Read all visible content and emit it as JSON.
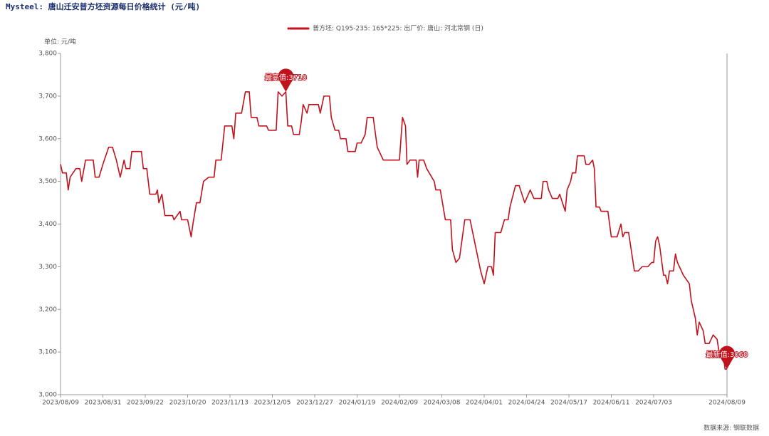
{
  "chart_data": {
    "type": "line",
    "title": "Mysteel: 唐山迁安普方坯资源每日价格统计 (元/吨)",
    "unit_label": "单位: 元/吨",
    "source": "数据来源: 钢联数据",
    "max_label": "最高值:3710",
    "latest_label": "最新值:3060",
    "x": [
      "2023/08/09",
      "2023/08/10",
      "2023/08/12",
      "2023/08/13",
      "2023/08/14",
      "2023/08/17",
      "2023/08/19",
      "2023/08/20",
      "2023/08/22",
      "2023/08/26",
      "2023/08/27",
      "2023/08/29",
      "2023/08/31",
      "2023/09/03",
      "2023/09/05",
      "2023/09/07",
      "2023/09/09",
      "2023/09/11",
      "2023/09/12",
      "2023/09/14",
      "2023/09/15",
      "2023/09/20",
      "2023/09/21",
      "2023/09/23",
      "2023/09/25",
      "2023/09/29",
      "2023/09/30",
      "2023/10/01",
      "2023/10/03",
      "2023/10/05",
      "2023/10/10",
      "2023/10/11",
      "2023/10/15",
      "2023/10/16",
      "2023/10/20",
      "2023/10/22",
      "2023/10/23",
      "2023/10/25",
      "2023/10/27",
      "2023/10/29",
      "2023/11/01",
      "2023/11/04",
      "2023/11/05",
      "2023/11/08",
      "2023/11/10",
      "2023/11/14",
      "2023/11/15",
      "2023/11/16",
      "2023/11/19",
      "2023/11/21",
      "2023/11/23",
      "2023/11/24",
      "2023/11/27",
      "2023/11/28",
      "2023/12/02",
      "2023/12/03",
      "2023/12/07",
      "2023/12/08",
      "2023/12/10",
      "2023/12/12",
      "2023/12/13",
      "2023/12/15",
      "2023/12/16",
      "2023/12/19",
      "2023/12/20",
      "2023/12/21",
      "2023/12/23",
      "2023/12/24",
      "2023/12/29",
      "2023/12/30",
      "2024/01/01",
      "2024/01/04",
      "2024/01/05",
      "2024/01/07",
      "2024/01/09",
      "2024/01/10",
      "2024/01/13",
      "2024/01/14",
      "2024/01/18",
      "2024/01/19",
      "2024/01/21",
      "2024/01/23",
      "2024/01/24",
      "2024/01/27",
      "2024/01/29",
      "2024/01/31",
      "2024/02/01",
      "2024/02/09",
      "2024/02/11",
      "2024/02/13",
      "2024/02/14",
      "2024/02/16",
      "2024/02/20",
      "2024/02/21",
      "2024/02/22",
      "2024/02/25",
      "2024/02/27",
      "2024/03/03",
      "2024/03/04",
      "2024/03/07",
      "2024/03/10",
      "2024/03/13",
      "2024/03/14",
      "2024/03/16",
      "2024/03/18",
      "2024/03/20",
      "2024/03/21",
      "2024/03/24",
      "2024/03/26",
      "2024/03/28",
      "2024/03/30",
      "2024/04/01",
      "2024/04/03",
      "2024/04/05",
      "2024/04/06",
      "2024/04/07",
      "2024/04/10",
      "2024/04/12",
      "2024/04/14",
      "2024/04/15",
      "2024/04/18",
      "2024/04/20",
      "2024/04/23",
      "2024/04/25",
      "2024/04/26",
      "2024/04/28",
      "2024/05/02",
      "2024/05/03",
      "2024/05/05",
      "2024/05/06",
      "2024/05/08",
      "2024/05/11",
      "2024/05/12",
      "2024/05/15",
      "2024/05/16",
      "2024/05/18",
      "2024/05/19",
      "2024/05/21",
      "2024/05/22",
      "2024/05/26",
      "2024/05/27",
      "2024/05/29",
      "2024/05/31",
      "2024/06/01",
      "2024/06/02",
      "2024/06/04",
      "2024/06/05",
      "2024/06/09",
      "2024/06/11",
      "2024/06/14",
      "2024/06/16",
      "2024/06/17",
      "2024/06/18",
      "2024/06/20",
      "2024/06/21",
      "2024/06/23",
      "2024/06/25",
      "2024/06/27",
      "2024/06/30",
      "2024/07/02",
      "2024/07/03",
      "2024/07/04",
      "2024/07/05",
      "2024/07/06",
      "2024/07/08",
      "2024/07/09",
      "2024/07/10",
      "2024/07/11",
      "2024/07/13",
      "2024/07/14",
      "2024/07/15",
      "2024/07/17",
      "2024/07/18",
      "2024/07/21",
      "2024/07/22",
      "2024/07/24",
      "2024/07/25",
      "2024/07/26",
      "2024/07/28",
      "2024/07/29",
      "2024/07/31",
      "2024/08/02",
      "2024/08/04",
      "2024/08/05",
      "2024/08/07",
      "2024/08/08",
      "2024/08/09"
    ],
    "series": [
      {
        "name": "普方坯: Q195-235: 165*225: 出厂价: 唐山: 河北常钢 (日)",
        "color": "#c0121c",
        "values": [
          3540,
          3520,
          3520,
          3480,
          3510,
          3530,
          3530,
          3500,
          3550,
          3550,
          3510,
          3510,
          3540,
          3580,
          3580,
          3550,
          3510,
          3550,
          3530,
          3530,
          3570,
          3570,
          3530,
          3530,
          3470,
          3470,
          3480,
          3450,
          3470,
          3420,
          3420,
          3410,
          3430,
          3410,
          3410,
          3370,
          3400,
          3450,
          3450,
          3500,
          3510,
          3510,
          3550,
          3550,
          3630,
          3630,
          3600,
          3660,
          3660,
          3710,
          3710,
          3650,
          3650,
          3630,
          3630,
          3620,
          3620,
          3710,
          3700,
          3710,
          3630,
          3630,
          3610,
          3610,
          3640,
          3680,
          3660,
          3680,
          3680,
          3660,
          3700,
          3700,
          3650,
          3620,
          3620,
          3600,
          3600,
          3570,
          3570,
          3590,
          3590,
          3610,
          3650,
          3650,
          3580,
          3560,
          3550,
          3550,
          3650,
          3630,
          3540,
          3550,
          3550,
          3510,
          3550,
          3550,
          3530,
          3500,
          3480,
          3480,
          3410,
          3410,
          3340,
          3310,
          3320,
          3380,
          3410,
          3410,
          3370,
          3330,
          3290,
          3260,
          3300,
          3300,
          3280,
          3380,
          3380,
          3410,
          3410,
          3440,
          3490,
          3490,
          3450,
          3470,
          3480,
          3460,
          3460,
          3500,
          3500,
          3480,
          3460,
          3460,
          3470,
          3430,
          3480,
          3500,
          3520,
          3520,
          3560,
          3560,
          3540,
          3540,
          3550,
          3530,
          3440,
          3440,
          3430,
          3430,
          3370,
          3370,
          3400,
          3370,
          3380,
          3380,
          3350,
          3290,
          3290,
          3300,
          3300,
          3310,
          3310,
          3360,
          3370,
          3350,
          3280,
          3280,
          3260,
          3290,
          3290,
          3330,
          3310,
          3290,
          3280,
          3260,
          3220,
          3180,
          3140,
          3170,
          3150,
          3120,
          3120,
          3140,
          3130,
          3100,
          3100,
          3060,
          3060
        ]
      }
    ],
    "ylim": [
      3000,
      3800
    ],
    "yticks": [
      {
        "value": 3000,
        "label": "3,000"
      },
      {
        "value": 3100,
        "label": "3,100"
      },
      {
        "value": 3200,
        "label": "3,200"
      },
      {
        "value": 3300,
        "label": "3,300"
      },
      {
        "value": 3400,
        "label": "3,400"
      },
      {
        "value": 3500,
        "label": "3,500"
      },
      {
        "value": 3600,
        "label": "3,600"
      },
      {
        "value": 3700,
        "label": "3,700"
      },
      {
        "value": 3800,
        "label": "3,800"
      }
    ],
    "xticks": [
      "2023/08/09",
      "2023/08/31",
      "2023/09/22",
      "2023/10/20",
      "2023/11/13",
      "2023/12/05",
      "2023/12/27",
      "2024/01/19",
      "2024/02/09",
      "2024/03/08",
      "2024/04/01",
      "2024/04/24",
      "2024/05/17",
      "2024/06/11",
      "2024/07/03",
      "2024/08/09"
    ],
    "grid": false
  }
}
